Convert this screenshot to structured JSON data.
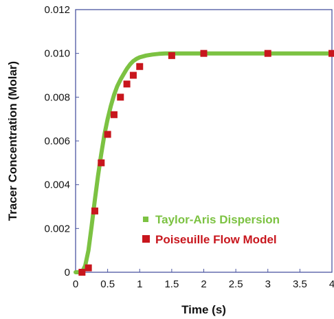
{
  "chart_data": {
    "type": "line",
    "xlabel": "Time (s)",
    "ylabel": "Tracer Concentration (Molar)",
    "xlim": [
      0,
      4
    ],
    "ylim": [
      0,
      0.012
    ],
    "x_ticks": [
      "0",
      "0.5",
      "1",
      "1.5",
      "2",
      "2.5",
      "3",
      "3.5",
      "4"
    ],
    "y_ticks": [
      "0",
      "0.002",
      "0.004",
      "0.006",
      "0.008",
      "0.010",
      "0.012"
    ],
    "grid": false,
    "legend_position": "bottom-right",
    "series": [
      {
        "name": "Taylor-Aris Dispersion",
        "style": "line",
        "color": "#7cc242",
        "x": [
          0,
          0.1,
          0.15,
          0.2,
          0.25,
          0.3,
          0.35,
          0.4,
          0.45,
          0.5,
          0.55,
          0.6,
          0.65,
          0.7,
          0.75,
          0.8,
          0.85,
          0.9,
          0.95,
          1.0,
          1.1,
          1.2,
          1.3,
          1.4,
          1.5,
          1.75,
          2.0,
          2.5,
          3.0,
          3.5,
          4.0
        ],
        "y": [
          0,
          0,
          0.0003,
          0.001,
          0.0021,
          0.0033,
          0.0044,
          0.0054,
          0.0063,
          0.007,
          0.0076,
          0.0081,
          0.0085,
          0.0088,
          0.00905,
          0.0093,
          0.0095,
          0.00965,
          0.00975,
          0.00982,
          0.0099,
          0.00995,
          0.00998,
          0.01,
          0.01,
          0.01,
          0.01,
          0.01,
          0.01,
          0.01,
          0.01
        ]
      },
      {
        "name": "Poiseuille Flow Model",
        "style": "markers",
        "color": "#c8161d",
        "x": [
          0.1,
          0.2,
          0.3,
          0.4,
          0.5,
          0.6,
          0.7,
          0.8,
          0.9,
          1.0,
          1.5,
          2.0,
          3.0,
          4.0
        ],
        "y": [
          0.0,
          0.0002,
          0.0028,
          0.005,
          0.0063,
          0.0072,
          0.008,
          0.0086,
          0.009,
          0.0094,
          0.0099,
          0.01,
          0.01,
          0.01
        ]
      }
    ]
  }
}
